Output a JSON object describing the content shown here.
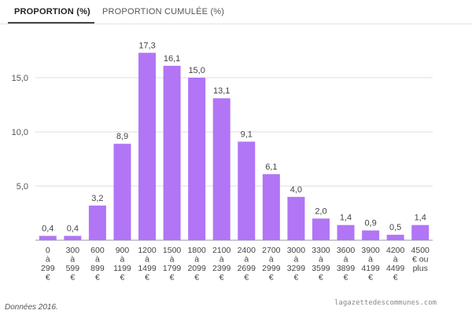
{
  "tabs": {
    "active_label": "PROPORTION (%)",
    "inactive_label": "PROPORTION CUMULÉE (%)"
  },
  "colors": {
    "bar": "#b175f6",
    "grid": "#dddddd",
    "axis_text": "#555555"
  },
  "chart_data": {
    "type": "bar",
    "title": "",
    "xlabel": "",
    "ylabel": "",
    "ylim": [
      0,
      18
    ],
    "y_ticks": [
      {
        "value": 5,
        "label": "5,0"
      },
      {
        "value": 10,
        "label": "10,0"
      },
      {
        "value": 15,
        "label": "15,0"
      }
    ],
    "grid": true,
    "categories": [
      [
        "0",
        "à",
        "299",
        "€"
      ],
      [
        "300",
        "à",
        "599",
        "€"
      ],
      [
        "600",
        "à",
        "899",
        "€"
      ],
      [
        "900",
        "à",
        "1199",
        "€"
      ],
      [
        "1200",
        "à",
        "1499",
        "€"
      ],
      [
        "1500",
        "à",
        "1799",
        "€"
      ],
      [
        "1800",
        "à",
        "2099",
        "€"
      ],
      [
        "2100",
        "à",
        "2399",
        "€"
      ],
      [
        "2400",
        "à",
        "2699",
        "€"
      ],
      [
        "2700",
        "à",
        "2999",
        "€"
      ],
      [
        "3000",
        "à",
        "3299",
        "€"
      ],
      [
        "3300",
        "à",
        "3599",
        "€"
      ],
      [
        "3600",
        "à",
        "3899",
        "€"
      ],
      [
        "3900",
        "à",
        "4199",
        "€"
      ],
      [
        "4200",
        "à",
        "4499",
        "€"
      ],
      [
        "4500",
        "€ ou",
        "plus"
      ]
    ],
    "values": [
      0.4,
      0.4,
      3.2,
      8.9,
      17.3,
      16.1,
      15.0,
      13.1,
      9.1,
      6.1,
      4.0,
      2.0,
      1.4,
      0.9,
      0.5,
      1.4
    ],
    "value_labels": [
      "0,4",
      "0,4",
      "3,2",
      "8,9",
      "17,3",
      "16,1",
      "15,0",
      "13,1",
      "9,1",
      "6,1",
      "4,0",
      "2,0",
      "1,4",
      "0,9",
      "0,5",
      "1,4"
    ]
  },
  "footnote": "Données 2016.",
  "watermark": "lagazettedescommunes.com"
}
